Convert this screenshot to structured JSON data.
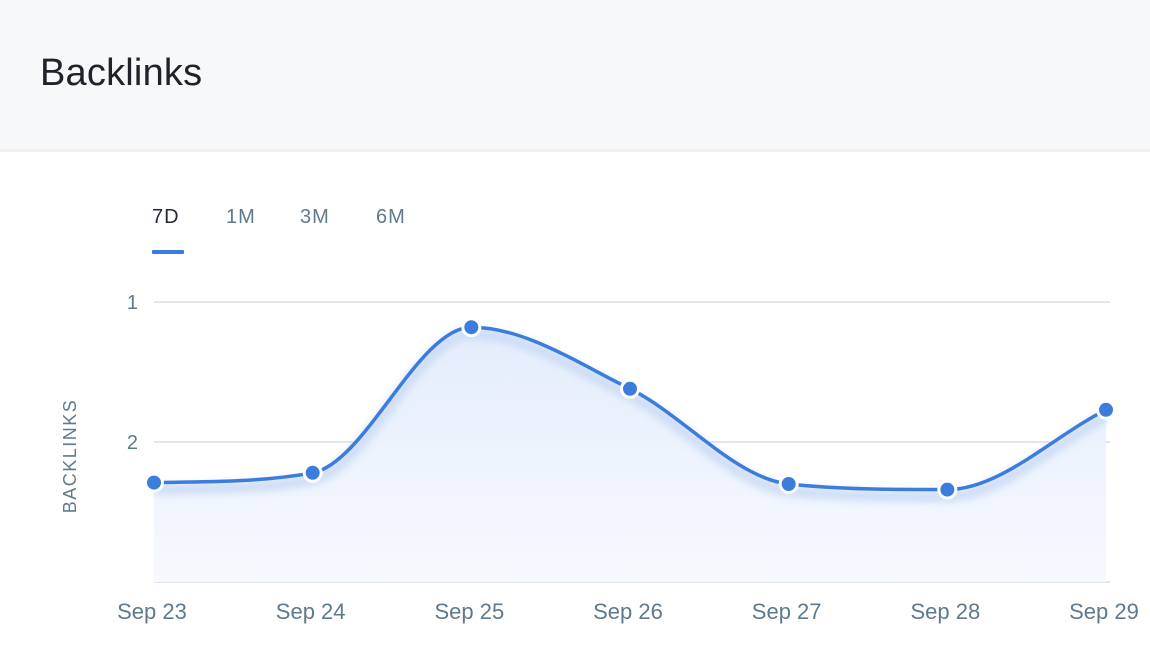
{
  "card": {
    "title": "Backlinks"
  },
  "range_tabs": {
    "items": [
      "7D",
      "1M",
      "3M",
      "6M"
    ],
    "active_index": 0
  },
  "colors": {
    "line": "#3b7ddd",
    "point": "#3b7ddd",
    "area_top": "#e4edfc",
    "grid": "#d7dde3",
    "axis_text": "#5f7a8c"
  },
  "chart_data": {
    "type": "area",
    "title": "",
    "xlabel": "",
    "ylabel": "BACKLINKS",
    "y_axis_inverted": true,
    "y_ticks": [
      1,
      2
    ],
    "ylim_top": 1,
    "ylim_bottom": 3,
    "categories": [
      "Sep 23",
      "Sep 24",
      "Sep 25",
      "Sep 26",
      "Sep 27",
      "Sep 28",
      "Sep 29"
    ],
    "values": [
      2.29,
      2.22,
      1.18,
      1.62,
      2.3,
      2.34,
      1.77
    ],
    "grid": true,
    "legend": "none"
  }
}
